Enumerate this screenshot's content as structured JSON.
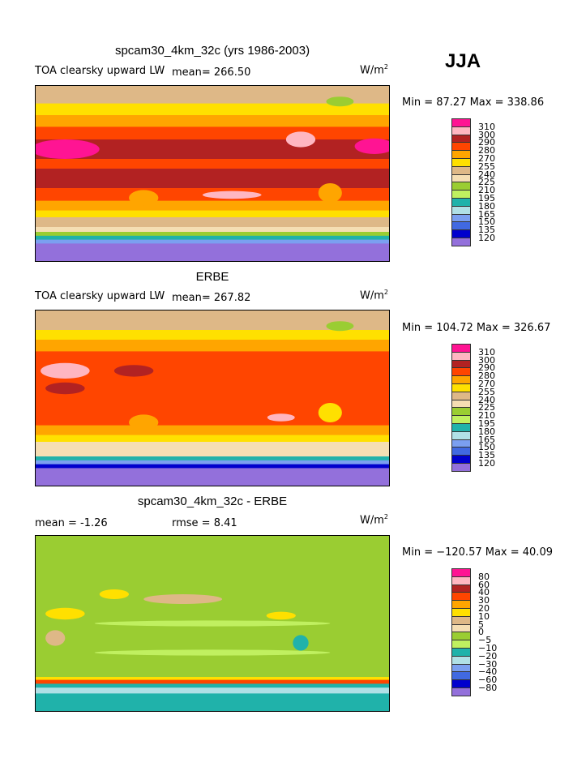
{
  "season": "JJA",
  "units_base": "W/m",
  "units_exp": "2",
  "colors": [
    "#ff1493",
    "#ffb6c1",
    "#b22222",
    "#ff4500",
    "#ffa500",
    "#ffe000",
    "#deb887",
    "#f5deb3",
    "#9acd32",
    "#c0f060",
    "#20b2aa",
    "#b0e0e6",
    "#7b9ff0",
    "#4169e1",
    "#0000cd",
    "#9370db"
  ],
  "chart_data": [
    {
      "type": "heatmap",
      "title": "spcam30_4km_32c (yrs 1986-2003)",
      "left_label": "TOA clearsky upward LW",
      "mean_label": "mean= 266.50",
      "minmax": "Min =  87.27 Max = 338.86",
      "levels": [
        "310",
        "300",
        "290",
        "280",
        "270",
        "255",
        "240",
        "225",
        "210",
        "195",
        "180",
        "165",
        "150",
        "135",
        "120"
      ],
      "zonal_bands": [
        [
          90,
          72,
          6
        ],
        [
          72,
          60,
          5
        ],
        [
          60,
          48,
          4
        ],
        [
          48,
          35,
          3
        ],
        [
          35,
          15,
          2
        ],
        [
          15,
          5,
          3
        ],
        [
          5,
          -15,
          2
        ],
        [
          -15,
          -28,
          3
        ],
        [
          -28,
          -38,
          4
        ],
        [
          -38,
          -45,
          5
        ],
        [
          -45,
          -55,
          6
        ],
        [
          -55,
          -60,
          7
        ],
        [
          -60,
          -64,
          8
        ],
        [
          -64,
          -68,
          10
        ],
        [
          -68,
          -72,
          12
        ],
        [
          -72,
          -90,
          15
        ]
      ],
      "patches": [
        [
          30,
          25,
          35,
          10,
          0
        ],
        [
          345,
          28,
          20,
          8,
          0
        ],
        [
          270,
          35,
          15,
          8,
          1
        ],
        [
          310,
          74,
          14,
          5,
          8
        ],
        [
          110,
          -25,
          15,
          8,
          4
        ],
        [
          300,
          -20,
          12,
          10,
          4
        ],
        [
          200,
          -22,
          30,
          4,
          1
        ]
      ]
    },
    {
      "type": "heatmap",
      "title": "ERBE",
      "left_label": "TOA clearsky upward LW",
      "mean_label": "mean= 267.82",
      "minmax": "Min = 104.72 Max = 326.67",
      "levels": [
        "310",
        "300",
        "290",
        "280",
        "270",
        "255",
        "240",
        "225",
        "210",
        "195",
        "180",
        "165",
        "150",
        "135",
        "120"
      ],
      "zonal_bands": [
        [
          90,
          70,
          6
        ],
        [
          70,
          60,
          5
        ],
        [
          60,
          48,
          4
        ],
        [
          48,
          35,
          3
        ],
        [
          35,
          15,
          3
        ],
        [
          15,
          -15,
          3
        ],
        [
          -15,
          -28,
          3
        ],
        [
          -28,
          -38,
          4
        ],
        [
          -38,
          -45,
          5
        ],
        [
          -45,
          -55,
          7
        ],
        [
          -55,
          -60,
          7
        ],
        [
          -60,
          -64,
          10
        ],
        [
          -64,
          -68,
          12
        ],
        [
          -68,
          -72,
          14
        ],
        [
          -72,
          -90,
          15
        ]
      ],
      "patches": [
        [
          30,
          28,
          25,
          8,
          1
        ],
        [
          100,
          28,
          20,
          6,
          2
        ],
        [
          310,
          74,
          14,
          5,
          8
        ],
        [
          250,
          -20,
          14,
          4,
          1
        ],
        [
          110,
          -25,
          15,
          8,
          4
        ],
        [
          300,
          -15,
          12,
          10,
          5
        ],
        [
          30,
          10,
          20,
          6,
          2
        ]
      ]
    },
    {
      "type": "heatmap",
      "title": "spcam30_4km_32c - ERBE",
      "mean_label": "mean =   -1.26",
      "rmse_label": "rmse =    8.41",
      "minmax": "Min = −120.57 Max =   40.09",
      "levels": [
        "80",
        "60",
        "40",
        "30",
        "20",
        "10",
        "5",
        "0",
        "−5",
        "−10",
        "−20",
        "−30",
        "−40",
        "−60",
        "−80"
      ],
      "zonal_bands": [
        [
          90,
          60,
          8
        ],
        [
          60,
          -55,
          8
        ],
        [
          -55,
          -58,
          5
        ],
        [
          -58,
          -62,
          3
        ],
        [
          -62,
          -66,
          10
        ],
        [
          -66,
          -72,
          11
        ],
        [
          -72,
          -90,
          10
        ]
      ],
      "patches": [
        [
          30,
          10,
          20,
          6,
          5
        ],
        [
          250,
          8,
          15,
          4,
          5
        ],
        [
          270,
          -20,
          8,
          8,
          10
        ],
        [
          150,
          25,
          40,
          5,
          6
        ],
        [
          180,
          0,
          120,
          3,
          9
        ],
        [
          180,
          -30,
          120,
          3,
          9
        ],
        [
          20,
          -15,
          10,
          8,
          6
        ],
        [
          80,
          30,
          15,
          5,
          5
        ]
      ]
    }
  ]
}
